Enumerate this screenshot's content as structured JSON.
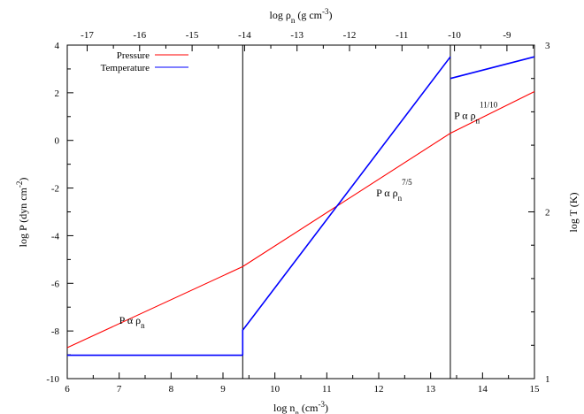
{
  "chart_data": {
    "type": "line",
    "x_bottom": {
      "label_main": "log n",
      "label_sub": "n",
      "label_unit_pre": " (cm",
      "label_unit_sup": "-3",
      "label_unit_post": ")",
      "range": [
        6,
        15
      ],
      "ticks": [
        "6",
        "7",
        "8",
        "9",
        "10",
        "11",
        "12",
        "13",
        "14",
        "15"
      ]
    },
    "x_top": {
      "label_main": "log ρ",
      "label_sub": "n",
      "label_unit_pre": " (g cm",
      "label_unit_sup": "-3",
      "label_unit_post": ")",
      "ticks": [
        "-17",
        "-16",
        "-15",
        "-14",
        "-13",
        "-12",
        "-11",
        "-10",
        "-9"
      ]
    },
    "y_left": {
      "label_main": "log P (dyn cm",
      "label_sup": "-2",
      "label_post": ")",
      "range": [
        -10,
        4
      ],
      "ticks": [
        "-10",
        "-8",
        "-6",
        "-4",
        "-2",
        "0",
        "2",
        "4"
      ]
    },
    "y_right": {
      "label": "log T (K)",
      "range": [
        1,
        3
      ],
      "ticks": [
        "1",
        "2",
        "3"
      ]
    },
    "legend_position": "top-left",
    "series": [
      {
        "name": "Pressure",
        "color": "#ff0000",
        "axis": "left",
        "points": [
          [
            6,
            -8.7
          ],
          [
            9.38,
            -5.3
          ],
          [
            13.38,
            0.3
          ],
          [
            15,
            2.05
          ]
        ]
      },
      {
        "name": "Temperature",
        "color": "#0000ff",
        "axis": "right",
        "segments": [
          [
            [
              6,
              1.14
            ],
            [
              9.38,
              1.14
            ]
          ],
          [
            [
              9.38,
              1.14
            ],
            [
              9.38,
              1.29
            ],
            [
              13.38,
              2.93
            ]
          ],
          [
            [
              13.38,
              2.8
            ],
            [
              15,
              2.93
            ]
          ]
        ]
      }
    ],
    "vertical_lines": [
      9.38,
      13.38
    ],
    "annotations": [
      {
        "text": "P α ρ",
        "sub": "n",
        "sup": "",
        "x": 7.0,
        "y": -7.7
      },
      {
        "text": "P α ρ",
        "sub": "n",
        "sup": "7/5",
        "x": 11.95,
        "y": -2.35
      },
      {
        "text": "P α ρ",
        "sub": "n",
        "sup": "11/10",
        "x": 13.45,
        "y": 0.9
      }
    ]
  }
}
